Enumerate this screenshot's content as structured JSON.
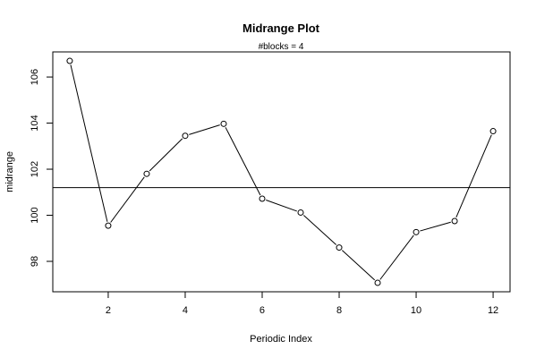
{
  "chart_data": {
    "type": "line",
    "title": "Midrange Plot",
    "subtitle": "#blocks =  4",
    "xlabel": "Periodic Index",
    "ylabel": "midrange",
    "x": [
      1,
      2,
      3,
      4,
      5,
      6,
      7,
      8,
      9,
      10,
      11,
      12
    ],
    "values": [
      106.7,
      99.55,
      101.8,
      103.45,
      103.97,
      100.72,
      100.12,
      98.6,
      97.07,
      99.27,
      99.75,
      103.65
    ],
    "reference_line": 101.2,
    "xlim": [
      0.56,
      12.44
    ],
    "ylim": [
      96.68,
      107.09
    ],
    "x_ticks": [
      2,
      4,
      6,
      8,
      10,
      12
    ],
    "y_ticks": [
      98,
      100,
      102,
      104,
      106
    ],
    "marker": "open-circle",
    "line_color": "#000000",
    "grid": false
  }
}
